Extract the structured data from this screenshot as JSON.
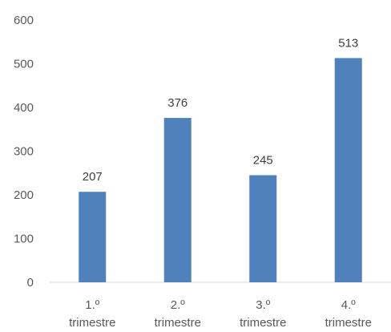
{
  "chart_data": {
    "type": "bar",
    "categories": [
      [
        "1.º",
        "trimestre"
      ],
      [
        "2.º",
        "trimestre"
      ],
      [
        "3.º",
        "trimestre"
      ],
      [
        "4.º",
        "trimestre"
      ]
    ],
    "values": [
      207,
      376,
      245,
      513
    ],
    "ylim": [
      0,
      600
    ],
    "yticks": [
      "0",
      "100",
      "200",
      "300",
      "400",
      "500",
      "600"
    ],
    "grid": false,
    "data_labels": true,
    "bar_color": "#4f81bd",
    "axis_color": "#d9d9d9",
    "text_color": "#595959"
  }
}
